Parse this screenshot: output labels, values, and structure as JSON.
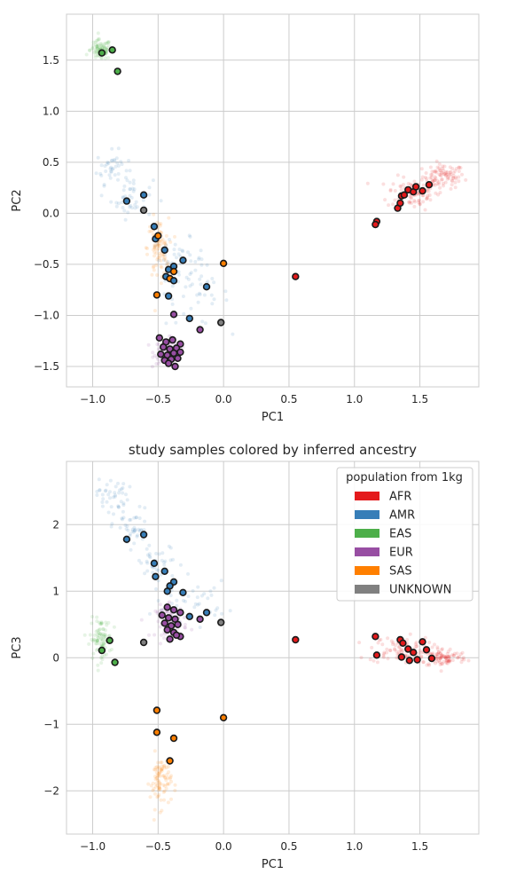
{
  "colors": {
    "AFR": "#e41a1c",
    "AMR": "#377eb8",
    "EAS": "#4daf4a",
    "EUR": "#984ea3",
    "SAS": "#ff7f00",
    "UNKNOWN": "#808080",
    "grid": "#cccccc",
    "spine": "#cccccc"
  },
  "chart_data": [
    {
      "type": "scatter",
      "title": "",
      "xlabel": "PC1",
      "ylabel": "PC2",
      "xlim": [
        -1.2,
        1.95
      ],
      "ylim": [
        -1.7,
        1.95
      ],
      "xticks": [
        -1.0,
        -0.5,
        0.0,
        0.5,
        1.0,
        1.5
      ],
      "xtick_labels": [
        "−1.0",
        "−0.5",
        "0.0",
        "0.5",
        "1.0",
        "1.5"
      ],
      "yticks": [
        -1.5,
        -1.0,
        -0.5,
        0.0,
        0.5,
        1.0,
        1.5
      ],
      "ytick_labels": [
        "−1.5",
        "−1.0",
        "−0.5",
        "0.0",
        "0.5",
        "1.0",
        "1.5"
      ],
      "grid": true,
      "reference_clusters": [
        {
          "population": "AFR",
          "center": [
            1.68,
            0.36
          ],
          "spread": [
            0.08,
            0.06
          ]
        },
        {
          "population": "AFR",
          "center": [
            1.45,
            0.2
          ],
          "spread": [
            0.1,
            0.08
          ]
        },
        {
          "population": "AMR",
          "center": [
            -0.85,
            0.45
          ],
          "spread": [
            0.06,
            0.08
          ]
        },
        {
          "population": "AMR",
          "center": [
            -0.7,
            0.15
          ],
          "spread": [
            0.08,
            0.1
          ]
        },
        {
          "population": "AMR",
          "center": [
            -0.35,
            -0.45
          ],
          "spread": [
            0.1,
            0.1
          ]
        },
        {
          "population": "AMR",
          "center": [
            -0.2,
            -0.8
          ],
          "spread": [
            0.12,
            0.15
          ]
        },
        {
          "population": "EAS",
          "center": [
            -0.94,
            1.6
          ],
          "spread": [
            0.04,
            0.05
          ]
        },
        {
          "population": "EUR",
          "center": [
            -0.43,
            -1.35
          ],
          "spread": [
            0.05,
            0.06
          ]
        },
        {
          "population": "SAS",
          "center": [
            -0.5,
            -0.35
          ],
          "spread": [
            0.04,
            0.15
          ]
        }
      ],
      "points": [
        {
          "x": -0.93,
          "y": 1.57,
          "pop": "EAS"
        },
        {
          "x": -0.85,
          "y": 1.6,
          "pop": "EAS"
        },
        {
          "x": -0.81,
          "y": 1.39,
          "pop": "EAS"
        },
        {
          "x": -0.61,
          "y": 0.18,
          "pop": "AMR"
        },
        {
          "x": -0.74,
          "y": 0.12,
          "pop": "AMR"
        },
        {
          "x": -0.61,
          "y": 0.03,
          "pop": "UNKNOWN"
        },
        {
          "x": -0.53,
          "y": -0.13,
          "pop": "AMR"
        },
        {
          "x": -0.52,
          "y": -0.25,
          "pop": "AMR"
        },
        {
          "x": -0.5,
          "y": -0.22,
          "pop": "SAS"
        },
        {
          "x": -0.45,
          "y": -0.36,
          "pop": "AMR"
        },
        {
          "x": -0.42,
          "y": -0.55,
          "pop": "AMR"
        },
        {
          "x": -0.38,
          "y": -0.52,
          "pop": "AMR"
        },
        {
          "x": -0.31,
          "y": -0.46,
          "pop": "AMR"
        },
        {
          "x": -0.38,
          "y": -0.57,
          "pop": "SAS"
        },
        {
          "x": -0.44,
          "y": -0.62,
          "pop": "AMR"
        },
        {
          "x": -0.41,
          "y": -0.64,
          "pop": "SAS"
        },
        {
          "x": -0.38,
          "y": -0.66,
          "pop": "AMR"
        },
        {
          "x": -0.51,
          "y": -0.8,
          "pop": "SAS"
        },
        {
          "x": -0.42,
          "y": -0.81,
          "pop": "AMR"
        },
        {
          "x": -0.13,
          "y": -0.72,
          "pop": "AMR"
        },
        {
          "x": 0.0,
          "y": -0.49,
          "pop": "SAS"
        },
        {
          "x": 0.55,
          "y": -0.62,
          "pop": "AFR"
        },
        {
          "x": -0.38,
          "y": -0.99,
          "pop": "EUR"
        },
        {
          "x": -0.26,
          "y": -1.03,
          "pop": "AMR"
        },
        {
          "x": -0.02,
          "y": -1.07,
          "pop": "UNKNOWN"
        },
        {
          "x": -0.18,
          "y": -1.14,
          "pop": "EUR"
        },
        {
          "x": -0.49,
          "y": -1.22,
          "pop": "EUR"
        },
        {
          "x": -0.44,
          "y": -1.26,
          "pop": "EUR"
        },
        {
          "x": -0.39,
          "y": -1.24,
          "pop": "EUR"
        },
        {
          "x": -0.33,
          "y": -1.28,
          "pop": "EUR"
        },
        {
          "x": -0.46,
          "y": -1.31,
          "pop": "EUR"
        },
        {
          "x": -0.41,
          "y": -1.33,
          "pop": "EUR"
        },
        {
          "x": -0.36,
          "y": -1.32,
          "pop": "EUR"
        },
        {
          "x": -0.48,
          "y": -1.38,
          "pop": "EUR"
        },
        {
          "x": -0.43,
          "y": -1.39,
          "pop": "EUR"
        },
        {
          "x": -0.38,
          "y": -1.37,
          "pop": "EUR"
        },
        {
          "x": -0.33,
          "y": -1.36,
          "pop": "EUR"
        },
        {
          "x": -0.45,
          "y": -1.44,
          "pop": "EUR"
        },
        {
          "x": -0.4,
          "y": -1.43,
          "pop": "EUR"
        },
        {
          "x": -0.35,
          "y": -1.42,
          "pop": "EUR"
        },
        {
          "x": -0.37,
          "y": -1.5,
          "pop": "EUR"
        },
        {
          "x": -0.42,
          "y": -1.47,
          "pop": "EUR"
        },
        {
          "x": 1.17,
          "y": -0.08,
          "pop": "AFR"
        },
        {
          "x": 1.16,
          "y": -0.11,
          "pop": "AFR"
        },
        {
          "x": 1.33,
          "y": 0.05,
          "pop": "AFR"
        },
        {
          "x": 1.35,
          "y": 0.1,
          "pop": "AFR"
        },
        {
          "x": 1.36,
          "y": 0.17,
          "pop": "AFR"
        },
        {
          "x": 1.38,
          "y": 0.18,
          "pop": "AFR"
        },
        {
          "x": 1.41,
          "y": 0.23,
          "pop": "AFR"
        },
        {
          "x": 1.45,
          "y": 0.21,
          "pop": "AFR"
        },
        {
          "x": 1.47,
          "y": 0.26,
          "pop": "AFR"
        },
        {
          "x": 1.52,
          "y": 0.22,
          "pop": "AFR"
        },
        {
          "x": 1.57,
          "y": 0.28,
          "pop": "AFR"
        }
      ]
    },
    {
      "type": "scatter",
      "title": "study samples colored by inferred ancestry",
      "xlabel": "PC1",
      "ylabel": "PC3",
      "xlim": [
        -1.2,
        1.95
      ],
      "ylim": [
        -2.65,
        2.95
      ],
      "xticks": [
        -1.0,
        -0.5,
        0.0,
        0.5,
        1.0,
        1.5
      ],
      "xtick_labels": [
        "−1.0",
        "−0.5",
        "0.0",
        "0.5",
        "1.0",
        "1.5"
      ],
      "yticks": [
        -2,
        -1,
        0,
        1,
        2
      ],
      "ytick_labels": [
        "−2",
        "−1",
        "0",
        "1",
        "2"
      ],
      "grid": true,
      "legend": {
        "title": "population from 1kg",
        "placement": "upper-right",
        "entries": [
          "AFR",
          "AMR",
          "EAS",
          "EUR",
          "SAS",
          "UNKNOWN"
        ]
      },
      "reference_clusters": [
        {
          "population": "AFR",
          "center": [
            1.68,
            0.0
          ],
          "spread": [
            0.09,
            0.07
          ]
        },
        {
          "population": "AFR",
          "center": [
            1.35,
            0.12
          ],
          "spread": [
            0.12,
            0.1
          ]
        },
        {
          "population": "AMR",
          "center": [
            -0.85,
            2.45
          ],
          "spread": [
            0.06,
            0.12
          ]
        },
        {
          "population": "AMR",
          "center": [
            -0.7,
            1.95
          ],
          "spread": [
            0.07,
            0.15
          ]
        },
        {
          "population": "AMR",
          "center": [
            -0.5,
            1.4
          ],
          "spread": [
            0.1,
            0.15
          ]
        },
        {
          "population": "AMR",
          "center": [
            -0.25,
            0.85
          ],
          "spread": [
            0.14,
            0.15
          ]
        },
        {
          "population": "EAS",
          "center": [
            -0.94,
            0.28
          ],
          "spread": [
            0.04,
            0.15
          ]
        },
        {
          "population": "EUR",
          "center": [
            -0.4,
            0.55
          ],
          "spread": [
            0.06,
            0.12
          ]
        },
        {
          "population": "SAS",
          "center": [
            -0.48,
            -1.85
          ],
          "spread": [
            0.04,
            0.2
          ]
        }
      ],
      "points": [
        {
          "x": -0.74,
          "y": 1.78,
          "pop": "AMR"
        },
        {
          "x": -0.61,
          "y": 1.85,
          "pop": "AMR"
        },
        {
          "x": -0.53,
          "y": 1.42,
          "pop": "AMR"
        },
        {
          "x": -0.45,
          "y": 1.3,
          "pop": "AMR"
        },
        {
          "x": -0.52,
          "y": 1.22,
          "pop": "AMR"
        },
        {
          "x": -0.38,
          "y": 1.14,
          "pop": "AMR"
        },
        {
          "x": -0.41,
          "y": 1.08,
          "pop": "AMR"
        },
        {
          "x": -0.43,
          "y": 1.0,
          "pop": "AMR"
        },
        {
          "x": -0.31,
          "y": 0.98,
          "pop": "AMR"
        },
        {
          "x": -0.13,
          "y": 0.68,
          "pop": "AMR"
        },
        {
          "x": -0.26,
          "y": 0.62,
          "pop": "AMR"
        },
        {
          "x": -0.02,
          "y": 0.53,
          "pop": "UNKNOWN"
        },
        {
          "x": -0.18,
          "y": 0.58,
          "pop": "EUR"
        },
        {
          "x": -0.61,
          "y": 0.23,
          "pop": "UNKNOWN"
        },
        {
          "x": -0.43,
          "y": 0.76,
          "pop": "EUR"
        },
        {
          "x": -0.38,
          "y": 0.72,
          "pop": "EUR"
        },
        {
          "x": -0.33,
          "y": 0.68,
          "pop": "EUR"
        },
        {
          "x": -0.47,
          "y": 0.64,
          "pop": "EUR"
        },
        {
          "x": -0.42,
          "y": 0.6,
          "pop": "EUR"
        },
        {
          "x": -0.37,
          "y": 0.58,
          "pop": "EUR"
        },
        {
          "x": -0.45,
          "y": 0.52,
          "pop": "EUR"
        },
        {
          "x": -0.4,
          "y": 0.48,
          "pop": "EUR"
        },
        {
          "x": -0.35,
          "y": 0.5,
          "pop": "EUR"
        },
        {
          "x": -0.43,
          "y": 0.42,
          "pop": "EUR"
        },
        {
          "x": -0.38,
          "y": 0.38,
          "pop": "EUR"
        },
        {
          "x": -0.33,
          "y": 0.32,
          "pop": "EUR"
        },
        {
          "x": -0.41,
          "y": 0.28,
          "pop": "EUR"
        },
        {
          "x": -0.36,
          "y": 0.34,
          "pop": "EUR"
        },
        {
          "x": -0.93,
          "y": 0.11,
          "pop": "EAS"
        },
        {
          "x": -0.87,
          "y": 0.26,
          "pop": "EAS"
        },
        {
          "x": -0.83,
          "y": -0.07,
          "pop": "EAS"
        },
        {
          "x": 0.55,
          "y": 0.27,
          "pop": "AFR"
        },
        {
          "x": 1.16,
          "y": 0.32,
          "pop": "AFR"
        },
        {
          "x": 1.17,
          "y": 0.04,
          "pop": "AFR"
        },
        {
          "x": 1.35,
          "y": 0.27,
          "pop": "AFR"
        },
        {
          "x": 1.37,
          "y": 0.22,
          "pop": "AFR"
        },
        {
          "x": 1.36,
          "y": 0.01,
          "pop": "AFR"
        },
        {
          "x": 1.41,
          "y": 0.13,
          "pop": "AFR"
        },
        {
          "x": 1.45,
          "y": 0.08,
          "pop": "AFR"
        },
        {
          "x": 1.42,
          "y": -0.04,
          "pop": "AFR"
        },
        {
          "x": 1.48,
          "y": -0.03,
          "pop": "AFR"
        },
        {
          "x": 1.52,
          "y": 0.24,
          "pop": "AFR"
        },
        {
          "x": 1.55,
          "y": 0.12,
          "pop": "AFR"
        },
        {
          "x": 1.59,
          "y": -0.01,
          "pop": "AFR"
        },
        {
          "x": -0.51,
          "y": -0.79,
          "pop": "SAS"
        },
        {
          "x": 0.0,
          "y": -0.9,
          "pop": "SAS"
        },
        {
          "x": -0.51,
          "y": -1.12,
          "pop": "SAS"
        },
        {
          "x": -0.38,
          "y": -1.21,
          "pop": "SAS"
        },
        {
          "x": -0.41,
          "y": -1.55,
          "pop": "SAS"
        }
      ]
    }
  ]
}
